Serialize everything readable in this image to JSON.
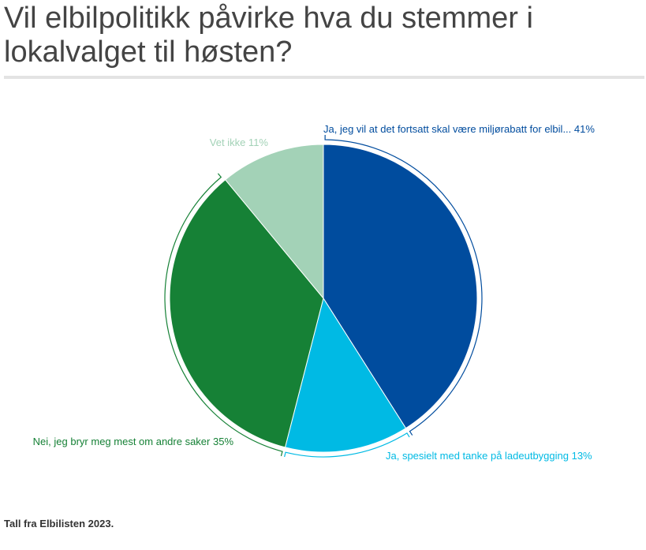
{
  "chart_data": {
    "type": "pie",
    "title": "Vil elbilpolitikk påvirke hva du stemmer i lokalvalget til høsten?",
    "slices": [
      {
        "label": "Ja, jeg vil at det fortsatt skal være miljørabatt for elbil...",
        "value": 41,
        "display": "Ja, jeg vil at det fortsatt skal være miljørabatt for elbil... 41%",
        "color": "#004C9E"
      },
      {
        "label": "Ja, spesielt med tanke på ladeutbygging",
        "value": 13,
        "display": "Ja, spesielt med tanke på ladeutbygging 13%",
        "color": "#00BAE4"
      },
      {
        "label": "Nei, jeg bryr meg mest om andre saker",
        "value": 35,
        "display": "Nei, jeg bryr meg mest om andre saker 35%",
        "color": "#168136"
      },
      {
        "label": "Vet ikke",
        "value": 11,
        "display": "Vet ikke 11%",
        "color": "#A3D2B7"
      }
    ]
  },
  "source_note": "Tall fra Elbilisten 2023."
}
